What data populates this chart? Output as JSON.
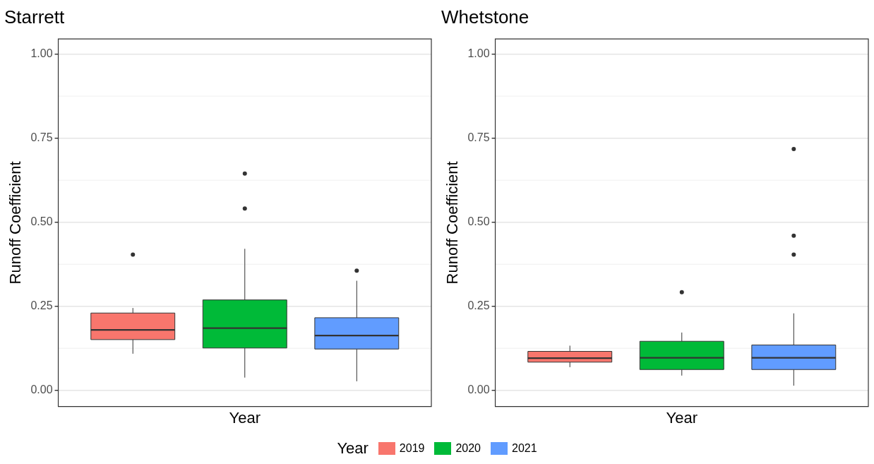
{
  "chart_data": [
    {
      "type": "box",
      "title": "Starrett",
      "xlabel": "Year",
      "ylabel": "Runoff Coefficient",
      "legend": "bottom",
      "legend_title": "Year",
      "categories": [
        null
      ],
      "ylim": [
        -0.048,
        1.045
      ],
      "yticks": [
        {
          "value": 0,
          "label": "0.00"
        },
        {
          "value": 0.25,
          "label": "0.25"
        },
        {
          "value": 0.5,
          "label": "0.50"
        },
        {
          "value": 0.75,
          "label": "0.75"
        },
        {
          "value": 1,
          "label": "1.00"
        }
      ],
      "grid": "y",
      "tick_labels": "y",
      "series": [
        {
          "name": "2019",
          "color": "#f8766d",
          "boxes": [
            {
              "low": 0.109,
              "q1": 0.151,
              "median": 0.18,
              "q3": 0.23,
              "high": 0.245,
              "outliers": [
                0.404
              ]
            }
          ]
        },
        {
          "name": "2020",
          "color": "#00ba38",
          "boxes": [
            {
              "low": 0.038,
              "q1": 0.126,
              "median": 0.185,
              "q3": 0.269,
              "high": 0.421,
              "outliers": [
                0.645,
                0.541
              ]
            }
          ]
        },
        {
          "name": "2021",
          "color": "#619cff",
          "boxes": [
            {
              "low": 0.027,
              "q1": 0.123,
              "median": 0.163,
              "q3": 0.216,
              "high": 0.326,
              "outliers": [
                0.356
              ]
            }
          ]
        }
      ]
    },
    {
      "type": "box",
      "title": "Whetstone",
      "xlabel": "Year",
      "ylabel": "Runoff Coefficient",
      "categories": [
        null
      ],
      "ylim": [
        -0.048,
        1.045
      ],
      "yticks": [
        {
          "value": 0,
          "label": "0.00"
        },
        {
          "value": 0.25,
          "label": "0.25"
        },
        {
          "value": 0.5,
          "label": "0.50"
        },
        {
          "value": 0.75,
          "label": "0.75"
        },
        {
          "value": 1,
          "label": "1.00"
        }
      ],
      "grid": "y",
      "tick_labels": "y",
      "series": [
        {
          "color": "#f8766d",
          "boxes": [
            {
              "low": 0.069,
              "q1": 0.084,
              "median": 0.096,
              "q3": 0.116,
              "high": 0.133
            }
          ]
        },
        {
          "color": "#00ba38",
          "boxes": [
            {
              "low": 0.044,
              "q1": 0.062,
              "median": 0.097,
              "q3": 0.146,
              "high": 0.172,
              "outliers": [
                0.292
              ]
            }
          ]
        },
        {
          "color": "#619cff",
          "boxes": [
            {
              "low": 0.014,
              "q1": 0.062,
              "median": 0.097,
              "q3": 0.135,
              "high": 0.229,
              "outliers": [
                0.718,
                0.46,
                0.404
              ]
            }
          ]
        }
      ]
    }
  ]
}
